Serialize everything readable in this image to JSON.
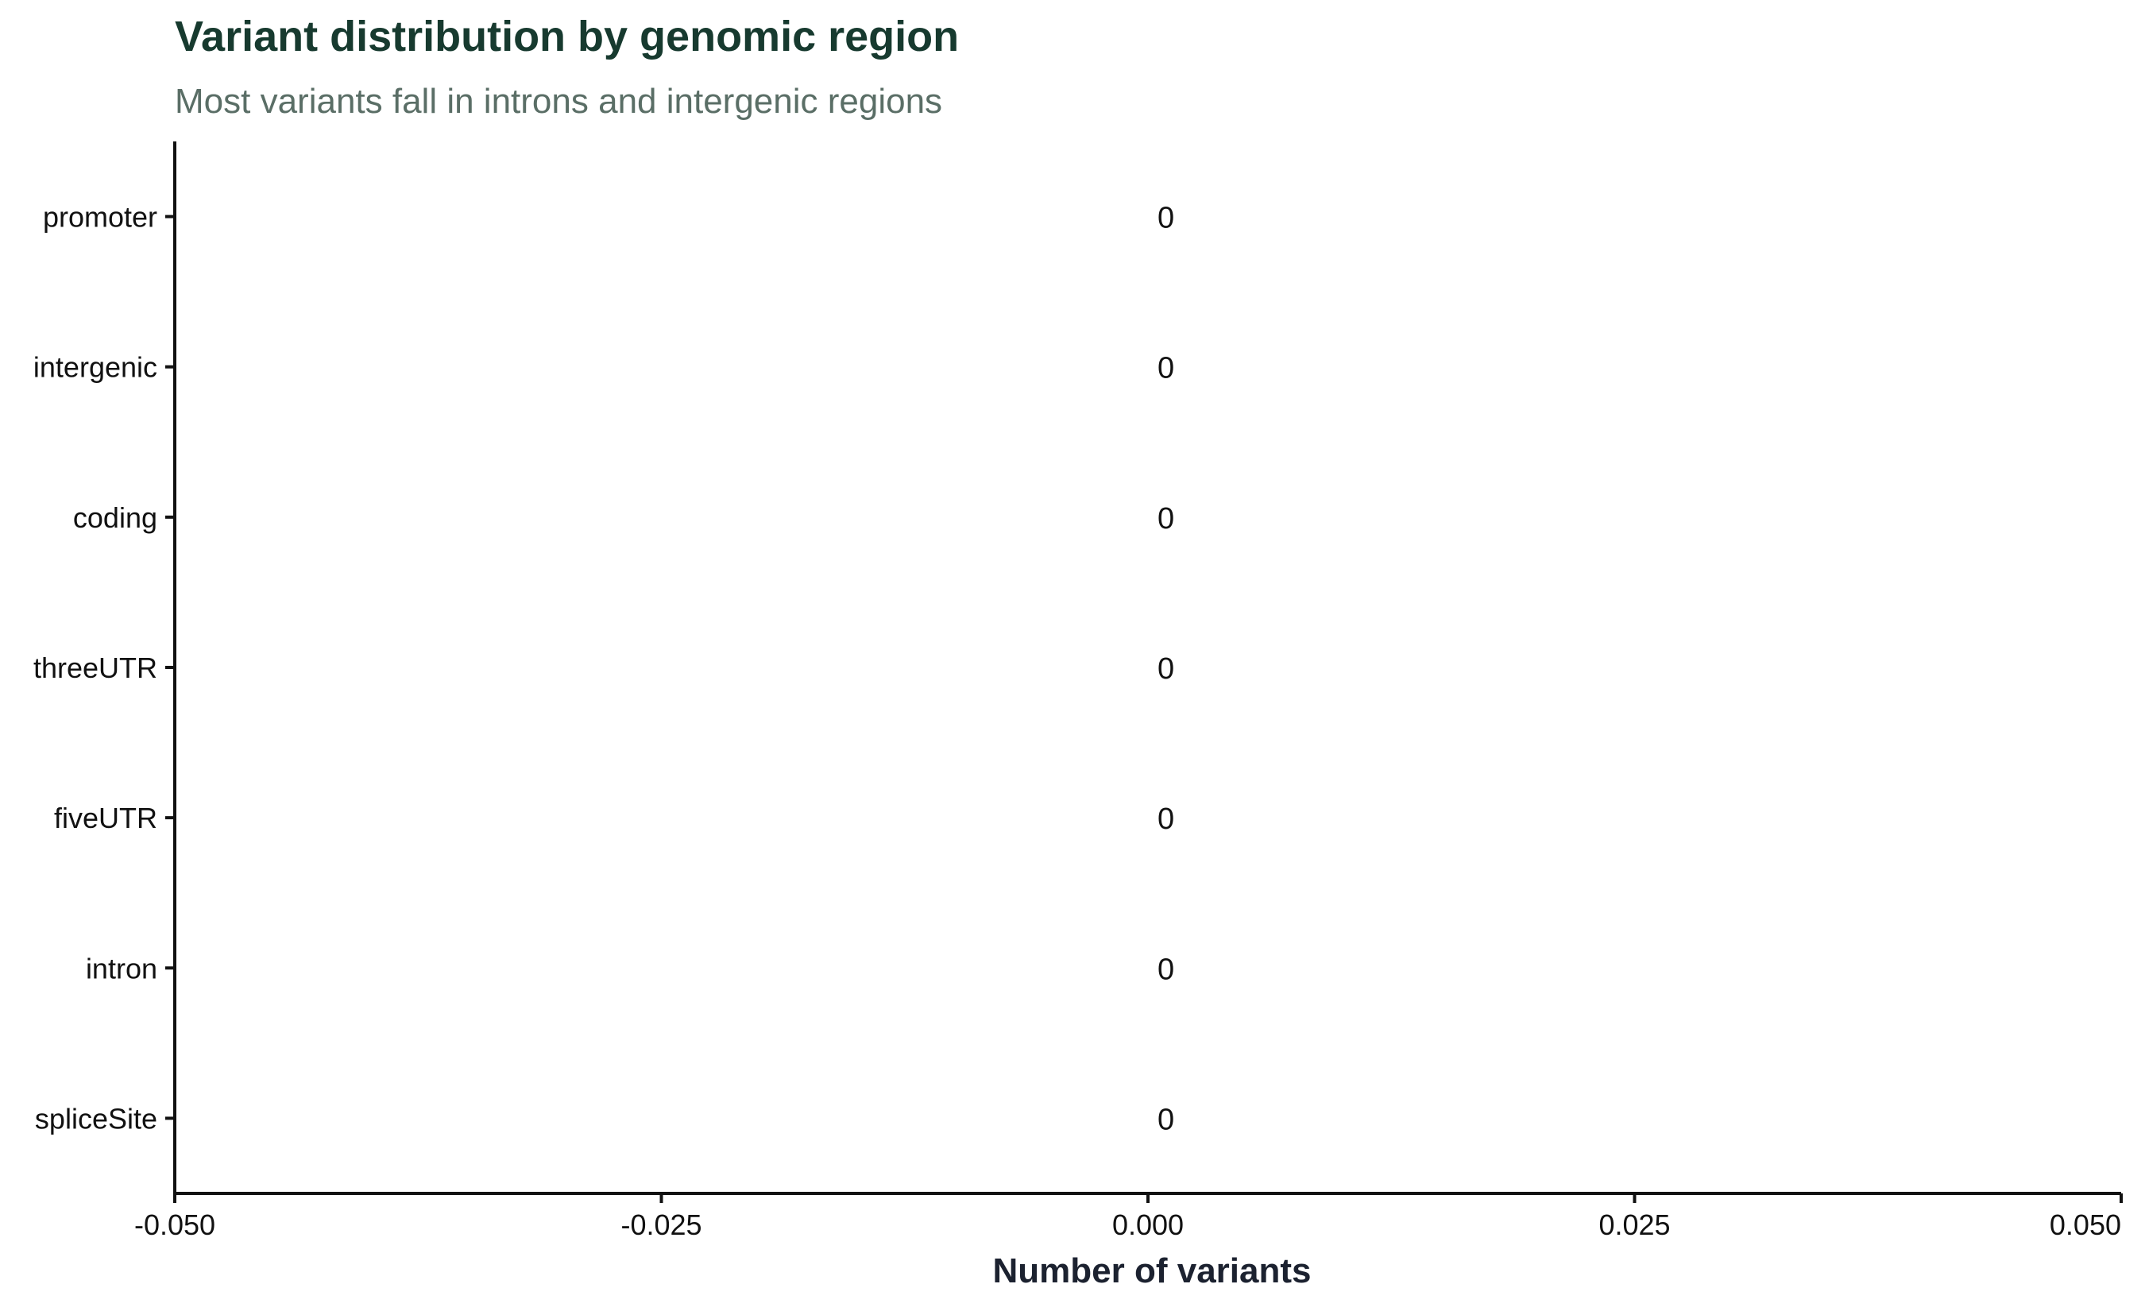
{
  "chart_data": {
    "type": "bar",
    "orientation": "horizontal",
    "title": "Variant distribution by genomic region",
    "subtitle": "Most variants fall in introns and intergenic regions",
    "xlabel": "Number of variants",
    "ylabel": "",
    "categories": [
      "promoter",
      "intergenic",
      "coding",
      "threeUTR",
      "fiveUTR",
      "intron",
      "spliceSite"
    ],
    "values": [
      0,
      0,
      0,
      0,
      0,
      0,
      0
    ],
    "data_labels": [
      "0",
      "0",
      "0",
      "0",
      "0",
      "0",
      "0"
    ],
    "xlim": [
      -0.05,
      0.05
    ],
    "xticks": [
      -0.05,
      -0.025,
      0,
      0.025,
      0.05
    ],
    "xtick_labels": [
      "-0.050",
      "-0.025",
      "0.000",
      "0.025",
      "0.050"
    ],
    "grid": false,
    "legend": "none"
  },
  "colors": {
    "title": "#173a2f",
    "subtitle": "#5a6e66",
    "axis": "#111111",
    "axis_title": "#1c2230",
    "bar": "#2e7d5b"
  }
}
